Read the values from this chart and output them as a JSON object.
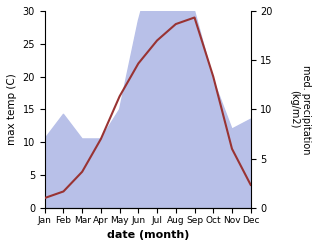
{
  "months": [
    "Jan",
    "Feb",
    "Mar",
    "Apr",
    "May",
    "Jun",
    "Jul",
    "Aug",
    "Sep",
    "Oct",
    "Nov",
    "Dec"
  ],
  "temp_C": [
    1.5,
    2.5,
    5.5,
    10.5,
    17.0,
    22.0,
    25.5,
    28.0,
    29.0,
    20.0,
    9.0,
    3.5
  ],
  "precip_kg": [
    7.0,
    9.5,
    7.0,
    7.0,
    10.0,
    19.0,
    26.0,
    27.0,
    20.0,
    13.0,
    8.0,
    9.0
  ],
  "temp_color": "#993333",
  "precip_fill_color": "#b8c0e8",
  "xlabel": "date (month)",
  "ylabel_left": "max temp (C)",
  "ylabel_right": "med. precipitation\n(kg/m2)",
  "ylim_left": [
    0,
    30
  ],
  "ylim_right": [
    0,
    20
  ],
  "yticks_left": [
    0,
    5,
    10,
    15,
    20,
    25,
    30
  ],
  "yticks_right": [
    0,
    5,
    10,
    15,
    20
  ]
}
